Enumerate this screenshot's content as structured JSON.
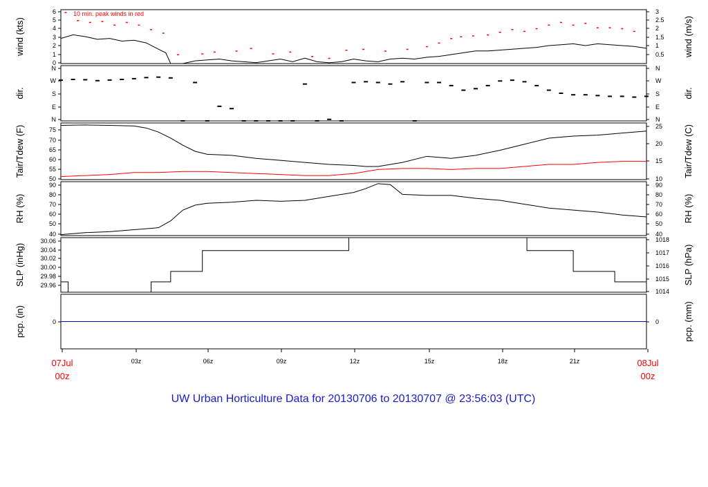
{
  "chart_data": {
    "type": "line",
    "title": "UW Urban Horticulture Data for 20130706  to  20130707 @ 23:56:03  (UTC)",
    "x_ticks": [
      "07Jul",
      "03z",
      "06z",
      "09z",
      "12z",
      "15z",
      "18z",
      "21z",
      "08Jul"
    ],
    "x_tick_sublabels": {
      "07Jul": "00z",
      "08Jul": "00z"
    },
    "xlim_hours": [
      0,
      24
    ],
    "panels": [
      {
        "id": "wind",
        "ylabel_left": "wind (kts)",
        "ylabel_right": "wind (m/s)",
        "yticks_left": [
          "0",
          "1",
          "2",
          "3",
          "4",
          "5",
          "6"
        ],
        "yticks_right": [
          "0.5",
          "1",
          "1.5",
          "2",
          "2.5",
          "3"
        ],
        "ylim": [
          0,
          6
        ],
        "annotation": "10 min. peak winds in red",
        "series": [
          {
            "role": "avg_wind",
            "color": "#000000",
            "x": [
              0,
              0.5,
              1,
              1.5,
              2,
              2.5,
              3,
              3.5,
              4,
              4.3,
              4.5,
              5,
              5.5,
              6,
              6.5,
              7,
              7.5,
              8,
              8.5,
              9,
              9.5,
              10,
              10.5,
              11,
              11.5,
              12,
              12.5,
              13,
              13.5,
              14,
              14.5,
              15,
              15.5,
              16,
              16.5,
              17,
              17.5,
              18,
              18.5,
              19,
              19.5,
              20,
              20.5,
              21,
              21.5,
              22,
              22.5,
              23,
              23.5,
              24
            ],
            "y": [
              2.8,
              3.2,
              3.0,
              2.7,
              2.8,
              2.5,
              2.6,
              2.3,
              1.6,
              1.2,
              0,
              0,
              0.3,
              0.4,
              0.5,
              0.3,
              0.2,
              0.1,
              0.3,
              0.5,
              0.2,
              0.6,
              0.2,
              0.1,
              0.2,
              0.5,
              0.3,
              0.2,
              0.5,
              0.6,
              0.5,
              0.7,
              0.8,
              1.0,
              1.2,
              1.4,
              1.4,
              1.5,
              1.6,
              1.7,
              1.8,
              2.0,
              2.1,
              2.2,
              2.0,
              2.2,
              2.1,
              2.0,
              1.9,
              1.7
            ]
          },
          {
            "role": "peak_wind",
            "color": "#ff0000",
            "x": [
              0.2,
              0.7,
              1.2,
              1.7,
              2.2,
              2.7,
              3.2,
              3.7,
              4.2,
              4.8,
              5.8,
              6.3,
              7.2,
              7.8,
              8.7,
              9.4,
              10.3,
              11,
              11.7,
              12.4,
              13.3,
              14.2,
              15,
              15.5,
              16,
              16.4,
              16.9,
              17.5,
              18,
              18.5,
              19,
              19.5,
              20,
              20.5,
              21,
              21.5,
              22,
              22.5,
              23,
              23.5
            ],
            "y": [
              5.7,
              4.8,
              4.6,
              4.7,
              4.3,
              4.6,
              4.3,
              3.8,
              3.4,
              1.0,
              1.1,
              1.3,
              1.4,
              1.7,
              1.1,
              1.3,
              0.8,
              0.6,
              1.5,
              1.6,
              1.4,
              1.6,
              1.9,
              2.3,
              2.8,
              3.0,
              3.1,
              3.2,
              3.5,
              3.8,
              3.6,
              3.9,
              4.3,
              4.6,
              4.3,
              4.5,
              4.0,
              4.0,
              3.9,
              3.6
            ]
          }
        ]
      },
      {
        "id": "dir",
        "ylabel_left": "dir.",
        "ylabel_right": "dir.",
        "yticks_left": [
          "N",
          "E",
          "S",
          "W",
          "N"
        ],
        "yticks_right": [
          "N",
          "E",
          "S",
          "W",
          "N"
        ],
        "ylim": [
          0,
          360
        ],
        "series": [
          {
            "role": "direction",
            "color": "#000000",
            "x": [
              0,
              0.5,
              1,
              1.5,
              2,
              2.5,
              3,
              3.5,
              4,
              4.5,
              5,
              5.5,
              6,
              6.5,
              7,
              7.5,
              8,
              8.5,
              9,
              9.5,
              10,
              10.5,
              11,
              11.5,
              12,
              12.5,
              13,
              13.5,
              14,
              14.5,
              15,
              15.5,
              16,
              16.5,
              17,
              17.5,
              18,
              18.5,
              19,
              19.5,
              20,
              20.5,
              21,
              21.5,
              22,
              22.5,
              23,
              23.5,
              24
            ],
            "y": [
              265,
              270,
              268,
              262,
              266,
              270,
              275,
              282,
              285,
              280,
              0,
              250,
              0,
              95,
              80,
              0,
              0,
              0,
              0,
              0,
              240,
              0,
              10,
              0,
              250,
              255,
              250,
              240,
              255,
              0,
              250,
              250,
              230,
              200,
              210,
              230,
              260,
              265,
              255,
              230,
              200,
              180,
              170,
              170,
              165,
              160,
              160,
              155,
              160
            ]
          }
        ]
      },
      {
        "id": "temp",
        "ylabel_left": "Tair/Tdew (F)",
        "ylabel_right": "Tair/Tdew (C)",
        "yticks_left": [
          "50",
          "55",
          "60",
          "65",
          "70",
          "75"
        ],
        "yticks_right": [
          "10",
          "15",
          "20",
          "25"
        ],
        "ylim": [
          50,
          78
        ],
        "series": [
          {
            "role": "air_temperature",
            "color": "#000000",
            "x": [
              0,
              1,
              2,
              3,
              3.5,
              4,
              4.5,
              5,
              5.5,
              6,
              7,
              8,
              9,
              10,
              11,
              12,
              12.5,
              13,
              14,
              15,
              16,
              17,
              18,
              19,
              20,
              21,
              22,
              23,
              24
            ],
            "y": [
              76.8,
              77.0,
              76.8,
              76.5,
              75.5,
              73.5,
              70.5,
              67.0,
              64.0,
              62.5,
              62.0,
              60.5,
              59.5,
              58.5,
              57.5,
              57.0,
              56.5,
              56.5,
              58.5,
              61.5,
              60.5,
              62.0,
              64.5,
              67.5,
              70.5,
              71.5,
              72.0,
              73.0,
              74.0
            ]
          },
          {
            "role": "dewpoint",
            "color": "#ff0000",
            "x": [
              0,
              1,
              2,
              3,
              4,
              5,
              6,
              7,
              8,
              9,
              10,
              11,
              12,
              13,
              14,
              15,
              16,
              17,
              18,
              19,
              20,
              21,
              22,
              23,
              24
            ],
            "y": [
              51.5,
              52.0,
              52.5,
              53.5,
              53.5,
              54.0,
              54.0,
              53.5,
              53.0,
              52.5,
              52.0,
              52.0,
              53.0,
              55.0,
              55.5,
              55.5,
              55.0,
              55.5,
              55.5,
              56.5,
              57.5,
              57.5,
              58.5,
              59.0,
              59.0
            ]
          }
        ]
      },
      {
        "id": "rh",
        "ylabel_left": "RH (%)",
        "ylabel_right": "RH (%)",
        "yticks_left": [
          "40",
          "50",
          "60",
          "70",
          "80",
          "90"
        ],
        "yticks_right": [
          "40",
          "50",
          "60",
          "70",
          "80",
          "90"
        ],
        "ylim": [
          40,
          95
        ],
        "series": [
          {
            "role": "relative_humidity",
            "color": "#000000",
            "x": [
              0,
              1,
              2,
              3,
              3.5,
              4,
              4.5,
              5,
              5.5,
              6,
              7,
              8,
              9,
              10,
              11,
              12,
              12.5,
              13,
              13.5,
              14,
              15,
              16,
              17,
              18,
              19,
              20,
              21,
              22,
              23,
              24
            ],
            "y": [
              41,
              43,
              44,
              46,
              47,
              48,
              55,
              66,
              71,
              73,
              74,
              76,
              75,
              76,
              80,
              84,
              88,
              93,
              92,
              82,
              81,
              81,
              78,
              76,
              72,
              68,
              66,
              64,
              61,
              59
            ]
          }
        ]
      },
      {
        "id": "slp",
        "ylabel_left": "SLP (inHg)",
        "ylabel_right": "SLP (hPa)",
        "yticks_left": [
          "29.96",
          "29.98",
          "30.00",
          "30.02",
          "30.04",
          "30.06"
        ],
        "yticks_right": [
          "1014",
          "1015",
          "1016",
          "1017",
          "1018"
        ],
        "ylim": [
          29.955,
          30.06
        ],
        "series": [
          {
            "role": "sea_level_pressure",
            "color": "#000000",
            "step": true,
            "x": [
              0,
              0.3,
              3.7,
              4.5,
              5.8,
              11.8,
              19.1,
              21.0,
              22.7,
              24
            ],
            "y": [
              29.975,
              29.955,
              29.975,
              29.995,
              30.035,
              30.06,
              30.035,
              29.995,
              29.975,
              29.975
            ]
          }
        ]
      },
      {
        "id": "pcp",
        "ylabel_left": "pcp. (in)",
        "ylabel_right": "pcp. (mm)",
        "yticks_left": [
          "0"
        ],
        "yticks_right": [
          "0"
        ],
        "ylim": [
          -1,
          1
        ],
        "series": [
          {
            "role": "precipitation",
            "color": "#0000cc",
            "x": [
              0,
              24
            ],
            "y": [
              0,
              0
            ]
          }
        ]
      }
    ]
  },
  "colors": {
    "axis": "#000000",
    "accent_red": "#ff0000",
    "precip_blue": "#0000cc",
    "footer_blue": "#1a1acd"
  }
}
